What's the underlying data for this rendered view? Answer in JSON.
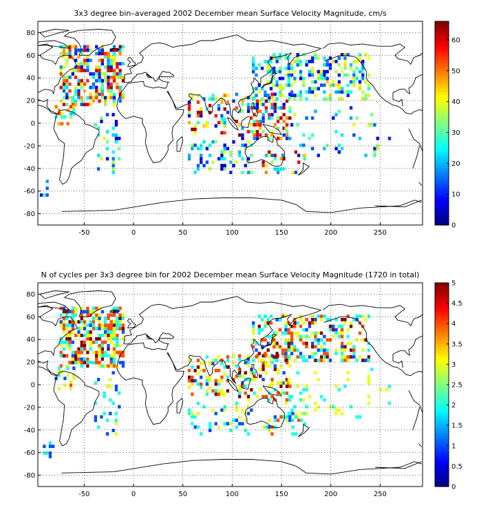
{
  "chart_data": [
    {
      "type": "heatmap",
      "title": "3x3 degree bin–averaged 2002 December mean Surface Velocity Magnitude, cm/s",
      "xlim": [
        -97,
        293
      ],
      "ylim": [
        -90,
        90
      ],
      "xticks": [
        -50,
        0,
        50,
        100,
        150,
        200,
        250
      ],
      "yticks": [
        80,
        60,
        40,
        20,
        0,
        -20,
        -40,
        -60,
        -80
      ],
      "grid": true,
      "bin_size_deg": 3,
      "colorbar": {
        "min": 0,
        "max": 66,
        "ticks": [
          0,
          10,
          20,
          30,
          40,
          50,
          60
        ],
        "colormap": "jet",
        "colors": [
          "#00008f",
          "#0000ff",
          "#00ffff",
          "#ffff00",
          "#ff0000",
          "#800000"
        ]
      },
      "regions": [
        {
          "lon": [
            -75,
            -10
          ],
          "lat": [
            15,
            68
          ],
          "density": 0.55,
          "value_range": [
            5,
            66
          ]
        },
        {
          "lon": [
            -40,
            -15
          ],
          "lat": [
            -45,
            10
          ],
          "density": 0.15,
          "value_range": [
            5,
            40
          ]
        },
        {
          "lon": [
            -80,
            -60
          ],
          "lat": [
            -5,
            15
          ],
          "density": 0.3,
          "value_range": [
            20,
            66
          ]
        },
        {
          "lon": [
            55,
            95
          ],
          "lat": [
            -10,
            25
          ],
          "density": 0.3,
          "value_range": [
            5,
            66
          ]
        },
        {
          "lon": [
            55,
            120
          ],
          "lat": [
            -45,
            -15
          ],
          "density": 0.2,
          "value_range": [
            3,
            40
          ]
        },
        {
          "lon": [
            100,
            160
          ],
          "lat": [
            -15,
            25
          ],
          "density": 0.35,
          "value_range": [
            3,
            66
          ]
        },
        {
          "lon": [
            120,
            240
          ],
          "lat": [
            20,
            60
          ],
          "density": 0.4,
          "value_range": [
            5,
            45
          ]
        },
        {
          "lon": [
            150,
            260
          ],
          "lat": [
            -30,
            15
          ],
          "density": 0.08,
          "value_range": [
            5,
            40
          ]
        },
        {
          "lon": [
            130,
            175
          ],
          "lat": [
            -45,
            -25
          ],
          "density": 0.2,
          "value_range": [
            5,
            66
          ]
        },
        {
          "lon": [
            -95,
            -80
          ],
          "lat": [
            -65,
            -50
          ],
          "density": 0.25,
          "value_range": [
            3,
            30
          ]
        }
      ]
    },
    {
      "type": "heatmap",
      "title": "N of cycles per 3x3 degree bin for 2002 December mean Surface Velocity Magnitude (1720 in total)",
      "xlim": [
        -97,
        293
      ],
      "ylim": [
        -90,
        90
      ],
      "xticks": [
        -50,
        0,
        50,
        100,
        150,
        200,
        250
      ],
      "yticks": [
        80,
        60,
        40,
        20,
        0,
        -20,
        -40,
        -60,
        -80
      ],
      "grid": true,
      "bin_size_deg": 3,
      "total_cycles": 1720,
      "colorbar": {
        "min": 0,
        "max": 5,
        "ticks": [
          0,
          0.5,
          1,
          1.5,
          2,
          2.5,
          3,
          3.5,
          4,
          4.5,
          5
        ],
        "colormap": "jet",
        "colors": [
          "#00008f",
          "#0000ff",
          "#00ffff",
          "#ffff00",
          "#ff0000",
          "#800000"
        ]
      },
      "regions": [
        {
          "lon": [
            -75,
            -10
          ],
          "lat": [
            15,
            68
          ],
          "density": 0.6,
          "value_range": [
            1,
            5
          ]
        },
        {
          "lon": [
            -40,
            -15
          ],
          "lat": [
            -45,
            10
          ],
          "density": 0.15,
          "value_range": [
            1,
            3
          ]
        },
        {
          "lon": [
            -80,
            -60
          ],
          "lat": [
            -5,
            15
          ],
          "density": 0.3,
          "value_range": [
            1,
            4
          ]
        },
        {
          "lon": [
            55,
            95
          ],
          "lat": [
            -10,
            25
          ],
          "density": 0.3,
          "value_range": [
            1,
            5
          ]
        },
        {
          "lon": [
            55,
            120
          ],
          "lat": [
            -45,
            -15
          ],
          "density": 0.2,
          "value_range": [
            1,
            3
          ]
        },
        {
          "lon": [
            100,
            160
          ],
          "lat": [
            -15,
            25
          ],
          "density": 0.35,
          "value_range": [
            1,
            5
          ]
        },
        {
          "lon": [
            120,
            240
          ],
          "lat": [
            20,
            60
          ],
          "density": 0.4,
          "value_range": [
            1,
            5
          ]
        },
        {
          "lon": [
            150,
            260
          ],
          "lat": [
            -30,
            15
          ],
          "density": 0.08,
          "value_range": [
            2,
            3
          ]
        },
        {
          "lon": [
            130,
            175
          ],
          "lat": [
            -45,
            -25
          ],
          "density": 0.2,
          "value_range": [
            1,
            4
          ]
        },
        {
          "lon": [
            -95,
            -80
          ],
          "lat": [
            -65,
            -50
          ],
          "density": 0.25,
          "value_range": [
            1,
            2
          ]
        }
      ]
    }
  ]
}
